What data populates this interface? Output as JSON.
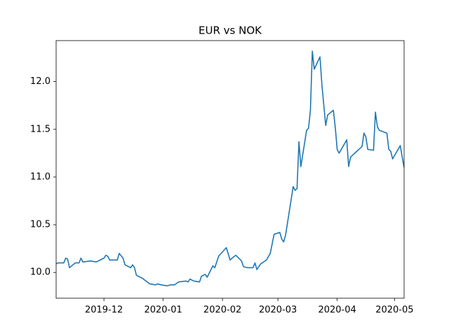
{
  "chart_data": {
    "type": "line",
    "title": "EUR vs NOK",
    "x": [
      "2019-11-06",
      "2019-11-07",
      "2019-11-10",
      "2019-11-11",
      "2019-11-12",
      "2019-11-13",
      "2019-11-16",
      "2019-11-18",
      "2019-11-19",
      "2019-11-20",
      "2019-11-24",
      "2019-11-27",
      "2019-11-29",
      "2019-12-01",
      "2019-12-02",
      "2019-12-03",
      "2019-12-04",
      "2019-12-08",
      "2019-12-09",
      "2019-12-11",
      "2019-12-12",
      "2019-12-15",
      "2019-12-16",
      "2019-12-17",
      "2019-12-18",
      "2019-12-21",
      "2019-12-25",
      "2019-12-28",
      "2019-12-29",
      "2019-12-31",
      "2020-01-03",
      "2020-01-05",
      "2020-01-07",
      "2020-01-09",
      "2020-01-13",
      "2020-01-14",
      "2020-01-15",
      "2020-01-17",
      "2020-01-20",
      "2020-01-21",
      "2020-01-23",
      "2020-01-24",
      "2020-01-27",
      "2020-01-28",
      "2020-01-30",
      "2020-02-03",
      "2020-02-05",
      "2020-02-06",
      "2020-02-08",
      "2020-02-11",
      "2020-02-12",
      "2020-02-14",
      "2020-02-17",
      "2020-02-18",
      "2020-02-19",
      "2020-02-21",
      "2020-02-24",
      "2020-02-26",
      "2020-02-28",
      "2020-03-02",
      "2020-03-03",
      "2020-03-04",
      "2020-03-05",
      "2020-03-09",
      "2020-03-10",
      "2020-03-11",
      "2020-03-12",
      "2020-03-13",
      "2020-03-16",
      "2020-03-17",
      "2020-03-18",
      "2020-03-19",
      "2020-03-20",
      "2020-03-23",
      "2020-03-24",
      "2020-03-26",
      "2020-03-27",
      "2020-03-30",
      "2020-03-31",
      "2020-04-01",
      "2020-04-02",
      "2020-04-06",
      "2020-04-07",
      "2020-04-08",
      "2020-04-14",
      "2020-04-15",
      "2020-04-16",
      "2020-04-17",
      "2020-04-20",
      "2020-04-21",
      "2020-04-22",
      "2020-04-23",
      "2020-04-27",
      "2020-04-28",
      "2020-04-29",
      "2020-04-30",
      "2020-05-04",
      "2020-05-05",
      "2020-05-06"
    ],
    "series": [
      {
        "color": "#1f77b4",
        "values": [
          10.09,
          10.1,
          10.1,
          10.15,
          10.14,
          10.05,
          10.1,
          10.1,
          10.15,
          10.11,
          10.12,
          10.11,
          10.13,
          10.15,
          10.18,
          10.17,
          10.13,
          10.13,
          10.2,
          10.15,
          10.08,
          10.05,
          10.08,
          10.05,
          9.97,
          9.94,
          9.88,
          9.87,
          9.88,
          9.87,
          9.86,
          9.87,
          9.87,
          9.9,
          9.91,
          9.9,
          9.93,
          9.91,
          9.9,
          9.96,
          9.98,
          9.95,
          10.07,
          10.05,
          10.17,
          10.26,
          10.13,
          10.15,
          10.18,
          10.12,
          10.06,
          10.05,
          10.05,
          10.1,
          10.03,
          10.09,
          10.13,
          10.2,
          10.4,
          10.42,
          10.35,
          10.32,
          10.39,
          10.9,
          10.86,
          10.88,
          11.37,
          11.11,
          11.49,
          11.51,
          11.7,
          12.32,
          12.13,
          12.26,
          11.97,
          11.54,
          11.65,
          11.7,
          11.52,
          11.29,
          11.25,
          11.39,
          11.11,
          11.21,
          11.32,
          11.46,
          11.42,
          11.29,
          11.28,
          11.68,
          11.53,
          11.49,
          11.46,
          11.29,
          11.27,
          11.19,
          11.33,
          11.21,
          11.1
        ]
      }
    ],
    "xlim": [
      "2019-11-06",
      "2020-05-06"
    ],
    "xticks": [
      {
        "value": "2019-12-01",
        "label": "2019-12"
      },
      {
        "value": "2020-01-01",
        "label": "2020-01"
      },
      {
        "value": "2020-02-01",
        "label": "2020-02"
      },
      {
        "value": "2020-03-01",
        "label": "2020-03"
      },
      {
        "value": "2020-04-01",
        "label": "2020-04"
      },
      {
        "value": "2020-05-01",
        "label": "2020-05"
      }
    ],
    "ylim": [
      9.73,
      12.43
    ],
    "yticks": [
      {
        "value": 10,
        "label": "10.0"
      },
      10.5,
      {
        "value": 11,
        "label": "11.0"
      },
      11.5,
      {
        "value": 12,
        "label": "12.0"
      }
    ]
  }
}
